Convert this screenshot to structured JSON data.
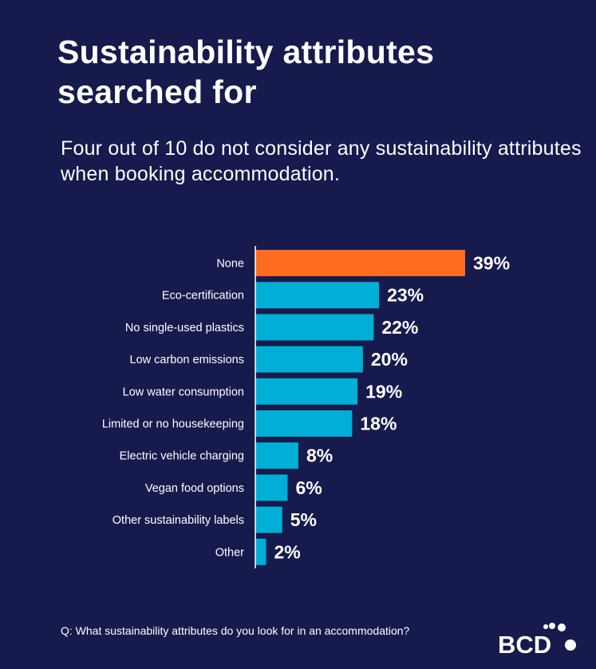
{
  "title": "Sustainability attributes searched for",
  "subtitle": "Four out of 10 do not consider any sustainability attributes when booking accommodation.",
  "question": "Q: What sustainability attributes do you look for in an accommodation?",
  "logo": "BCD",
  "colors": {
    "background": "#171a4d",
    "highlight": "#ff6b1f",
    "bar": "#00aed6"
  },
  "chart_data": {
    "type": "bar",
    "orientation": "horizontal",
    "categories": [
      "None",
      "Eco-certification",
      "No single-used plastics",
      "Low carbon emissions",
      "Low water consumption",
      "Limited or no housekeeping",
      "Electric vehicle charging",
      "Vegan food options",
      "Other sustainability labels",
      "Other"
    ],
    "values": [
      39,
      23,
      22,
      20,
      19,
      18,
      8,
      6,
      5,
      2
    ],
    "labels": [
      "39%",
      "23%",
      "22%",
      "20%",
      "19%",
      "18%",
      "8%",
      "6%",
      "5%",
      "2%"
    ],
    "highlight_index": 0,
    "unit": "%",
    "grid": false
  }
}
